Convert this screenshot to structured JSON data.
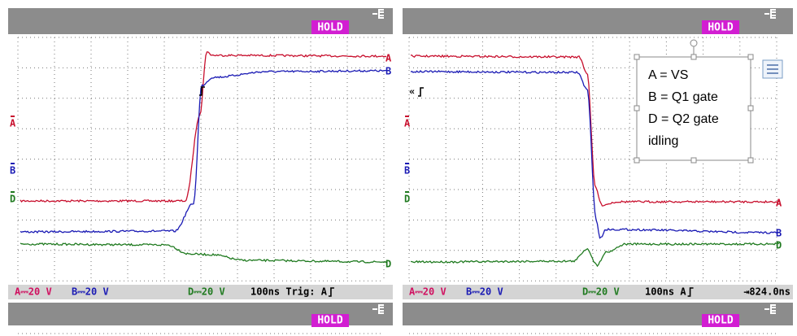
{
  "panels": [
    {
      "hold": "HOLD",
      "channels": [
        "A",
        "B",
        "D"
      ],
      "trace_ends": [
        "A",
        "B",
        "D"
      ],
      "status": {
        "a": "A⎓20 V",
        "b": "B⎓20 V",
        "d": "D⎓20 V",
        "time": "100ns Trig: A"
      }
    },
    {
      "hold": "HOLD",
      "channels": [
        "A",
        "B",
        "D"
      ],
      "trace_ends": [
        "A",
        "B",
        "D"
      ],
      "trigger": "«",
      "status": {
        "a": "A⎓20 V",
        "b": "B⎓20 V",
        "d": "D⎓20 V",
        "time": "100ns A",
        "offset": "⇥824.0ns"
      }
    }
  ],
  "legend": [
    "A = VS",
    "B = Q1 gate",
    "D = Q2 gate",
    "idling"
  ],
  "lower_panels": [
    {
      "hold": "HOLD"
    },
    {
      "hold": "HOLD"
    }
  ]
}
